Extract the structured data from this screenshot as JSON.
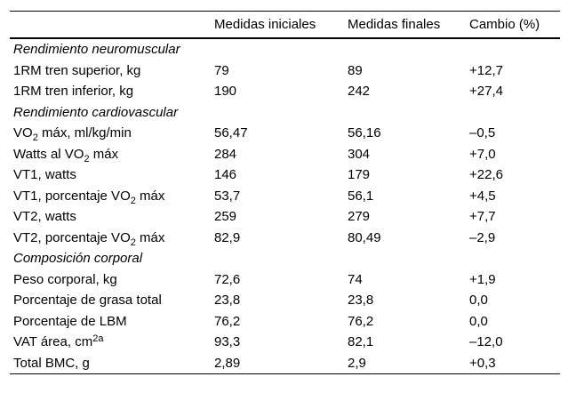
{
  "table": {
    "columns": [
      "",
      "Medidas iniciales",
      "Medidas finales",
      "Cambio (%)"
    ],
    "rows": [
      {
        "type": "section",
        "label": [
          {
            "text": "Rendimiento neuromuscular"
          }
        ]
      },
      {
        "type": "data",
        "label": [
          {
            "text": "1RM tren superior, kg"
          }
        ],
        "initial": "79",
        "final": "89",
        "change": "+12,7"
      },
      {
        "type": "data",
        "label": [
          {
            "text": "1RM tren inferior, kg"
          }
        ],
        "initial": "190",
        "final": "242",
        "change": "+27,4"
      },
      {
        "type": "section",
        "label": [
          {
            "text": "Rendimiento cardiovascular"
          }
        ]
      },
      {
        "type": "data",
        "label": [
          {
            "text": "VO"
          },
          {
            "text": "2",
            "script": "sub"
          },
          {
            "text": " máx, ml/kg/min"
          }
        ],
        "initial": "56,47",
        "final": "56,16",
        "change": "–0,5"
      },
      {
        "type": "data",
        "label": [
          {
            "text": "Watts al VO"
          },
          {
            "text": "2",
            "script": "sub"
          },
          {
            "text": " máx"
          }
        ],
        "initial": "284",
        "final": "304",
        "change": "+7,0"
      },
      {
        "type": "data",
        "label": [
          {
            "text": "VT1, watts"
          }
        ],
        "initial": "146",
        "final": "179",
        "change": "+22,6"
      },
      {
        "type": "data",
        "label": [
          {
            "text": "VT1, porcentaje VO"
          },
          {
            "text": "2",
            "script": "sub"
          },
          {
            "text": " máx"
          }
        ],
        "initial": "53,7",
        "final": "56,1",
        "change": "+4,5"
      },
      {
        "type": "data",
        "label": [
          {
            "text": "VT2, watts"
          }
        ],
        "initial": "259",
        "final": "279",
        "change": "+7,7"
      },
      {
        "type": "data",
        "label": [
          {
            "text": "VT2, porcentaje VO"
          },
          {
            "text": "2",
            "script": "sub"
          },
          {
            "text": " máx"
          }
        ],
        "initial": "82,9",
        "final": "80,49",
        "change": "–2,9"
      },
      {
        "type": "section",
        "label": [
          {
            "text": "Composición corporal"
          }
        ]
      },
      {
        "type": "data",
        "label": [
          {
            "text": "Peso corporal, kg"
          }
        ],
        "initial": "72,6",
        "final": "74",
        "change": "+1,9"
      },
      {
        "type": "data",
        "label": [
          {
            "text": "Porcentaje de grasa total"
          }
        ],
        "initial": "23,8",
        "final": "23,8",
        "change": "0,0"
      },
      {
        "type": "data",
        "label": [
          {
            "text": "Porcentaje de LBM"
          }
        ],
        "initial": "76,2",
        "final": "76,2",
        "change": "0,0"
      },
      {
        "type": "data",
        "label": [
          {
            "text": "VAT área, cm"
          },
          {
            "text": "2a",
            "script": "sup"
          }
        ],
        "initial": "93,3",
        "final": "82,1",
        "change": "–12,0"
      },
      {
        "type": "data",
        "label": [
          {
            "text": "Total BMC, g"
          }
        ],
        "initial": "2,89",
        "final": "2,9",
        "change": "+0,3"
      }
    ]
  }
}
